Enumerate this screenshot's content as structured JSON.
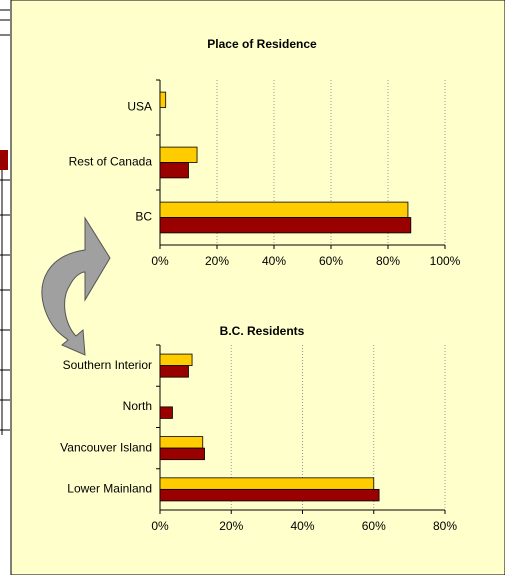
{
  "chart_data": [
    {
      "type": "bar",
      "orientation": "horizontal",
      "title": "Place of Residence",
      "categories": [
        "USA",
        "Rest of Canada",
        "BC"
      ],
      "series": [
        {
          "color": "#ffcc00",
          "values": [
            2,
            13,
            87
          ]
        },
        {
          "color": "#990000",
          "values": [
            0,
            10,
            88
          ]
        }
      ],
      "xlim": [
        0,
        100
      ],
      "xticks": [
        {
          "value": 0,
          "label": "0%"
        },
        {
          "value": 20,
          "label": "20%"
        },
        {
          "value": 40,
          "label": "40%"
        },
        {
          "value": 60,
          "label": "60%"
        },
        {
          "value": 80,
          "label": "80%"
        },
        {
          "value": 100,
          "label": "100%"
        }
      ],
      "grid": true
    },
    {
      "type": "bar",
      "orientation": "horizontal",
      "title": "B.C. Residents",
      "categories": [
        "Southern Interior",
        "North",
        "Vancouver Island",
        "Lower Mainland"
      ],
      "series": [
        {
          "color": "#ffcc00",
          "values": [
            9,
            0,
            12,
            60
          ]
        },
        {
          "color": "#990000",
          "values": [
            8,
            3.5,
            12.5,
            61.5
          ]
        }
      ],
      "xlim": [
        0,
        80
      ],
      "xticks": [
        {
          "value": 0,
          "label": "0%"
        },
        {
          "value": 20,
          "label": "20%"
        },
        {
          "value": 40,
          "label": "40%"
        },
        {
          "value": 60,
          "label": "60%"
        },
        {
          "value": 80,
          "label": "80%"
        }
      ],
      "grid": true
    }
  ]
}
